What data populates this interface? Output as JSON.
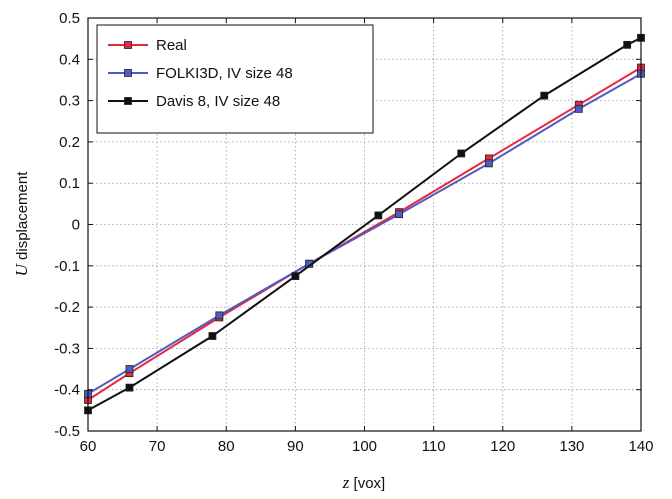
{
  "chart_data": {
    "type": "line",
    "title": "",
    "xlabel": {
      "var": "z",
      "rest": " [vox]"
    },
    "ylabel": {
      "var": "U",
      "rest": " displacement"
    },
    "xlim": [
      60,
      140
    ],
    "ylim": [
      -0.5,
      0.5
    ],
    "xticks": [
      "60",
      "70",
      "80",
      "90",
      "100",
      "110",
      "120",
      "130",
      "140"
    ],
    "yticks": [
      "-0.5",
      "-0.4",
      "-0.3",
      "-0.2",
      "-0.1",
      "0",
      "0.1",
      "0.2",
      "0.3",
      "0.4",
      "0.5"
    ],
    "grid": true,
    "legend_position": "top-left",
    "series": [
      {
        "name": "Real",
        "color": "#e8283c",
        "x": [
          60,
          66,
          79,
          92,
          105,
          118,
          131,
          140
        ],
        "y": [
          -0.425,
          -0.36,
          -0.225,
          -0.095,
          0.03,
          0.16,
          0.29,
          0.38
        ]
      },
      {
        "name": "FOLKI3D, IV size 48",
        "color": "#4f5bc4",
        "x": [
          60,
          66,
          79,
          92,
          105,
          118,
          131,
          140
        ],
        "y": [
          -0.41,
          -0.35,
          -0.22,
          -0.095,
          0.025,
          0.148,
          0.28,
          0.365
        ]
      },
      {
        "name": "Davis 8, IV size 48",
        "color": "#111111",
        "x": [
          60,
          66,
          78,
          90,
          102,
          114,
          126,
          138,
          140
        ],
        "y": [
          -0.45,
          -0.395,
          -0.27,
          -0.125,
          0.022,
          0.172,
          0.312,
          0.435,
          0.452
        ]
      }
    ]
  }
}
